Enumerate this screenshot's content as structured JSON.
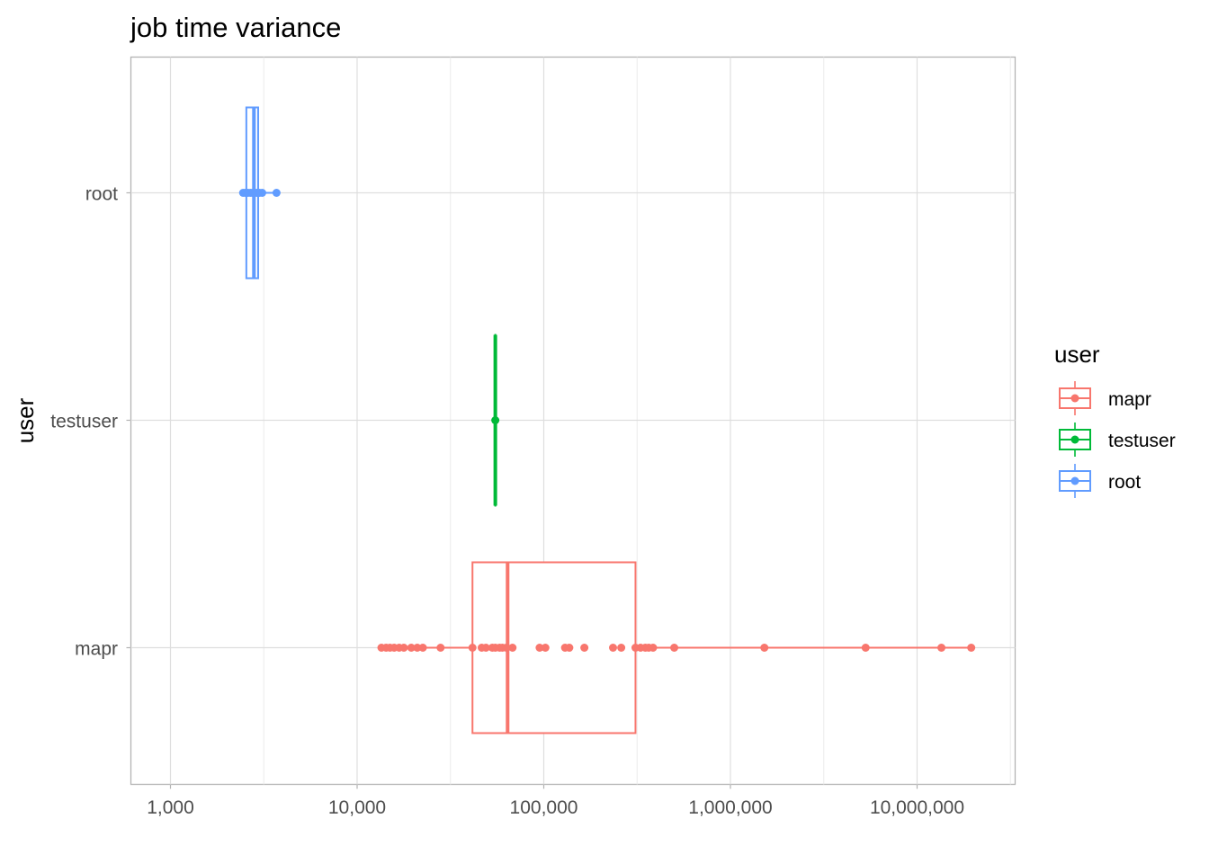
{
  "chart_data": {
    "type": "boxplot",
    "title": "job time variance",
    "xlabel": "",
    "ylabel": "user",
    "x_scale": "log10",
    "xlim": [
      650,
      33000000
    ],
    "x_ticks": [
      1000,
      10000,
      100000,
      1000000,
      10000000
    ],
    "x_tick_labels": [
      "1,000",
      "10,000",
      "100,000",
      "1,000,000",
      "10,000,000"
    ],
    "categories": [
      "mapr",
      "testuser",
      "root"
    ],
    "grid": true,
    "legend": {
      "title": "user",
      "position": "right",
      "entries": [
        "mapr",
        "testuser",
        "root"
      ]
    },
    "colors": {
      "mapr": "#F8766D",
      "testuser": "#00BA38",
      "root": "#619CFF"
    },
    "series": [
      {
        "name": "mapr",
        "q1": 41500,
        "median": 64000,
        "q3": 310000,
        "whisker_low": 13500,
        "whisker_high": 19500000,
        "points": [
          13500,
          14300,
          15000,
          15800,
          16800,
          17800,
          19500,
          21000,
          22500,
          28000,
          41500,
          46500,
          49000,
          53000,
          55000,
          58000,
          60000,
          63000,
          68000,
          95000,
          102000,
          130000,
          137000,
          165000,
          235000,
          260000,
          310000,
          330000,
          350000,
          365000,
          385000,
          500000,
          1520000,
          5300000,
          13500000,
          19500000
        ]
      },
      {
        "name": "testuser",
        "q1": 55000,
        "median": 55000,
        "q3": 55000,
        "whisker_low": 55000,
        "whisker_high": 55000,
        "points": [
          55000
        ]
      },
      {
        "name": "root",
        "q1": 2550,
        "median": 2800,
        "q3": 2950,
        "whisker_low": 2450,
        "whisker_high": 3700,
        "points": [
          2450,
          2520,
          2600,
          2680,
          2750,
          2820,
          2900,
          3000,
          3100,
          3700
        ]
      }
    ]
  }
}
